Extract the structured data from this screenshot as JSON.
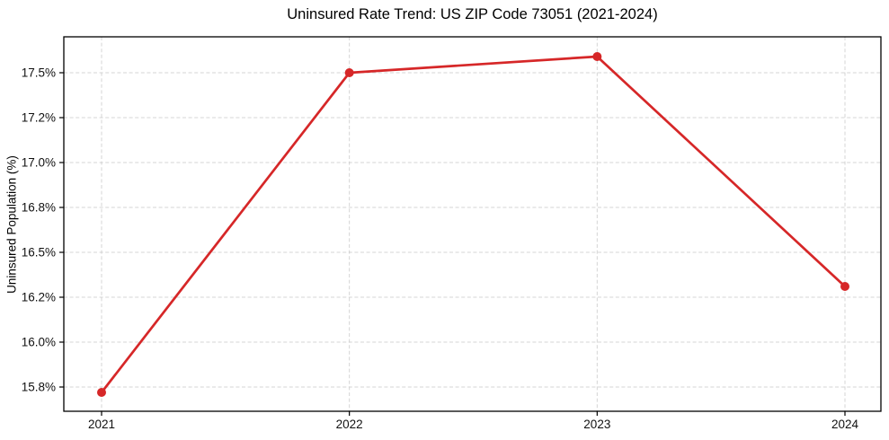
{
  "chart_data": {
    "type": "line",
    "title": "Uninsured Rate Trend: US ZIP Code 73051 (2021-2024)",
    "ylabel": "Uninsured Population (%)",
    "xlabel": "",
    "x": [
      "2021",
      "2022",
      "2023",
      "2024"
    ],
    "values": [
      15.72,
      17.5,
      17.59,
      16.31
    ],
    "ylim": [
      15.615,
      17.7
    ],
    "yticks": {
      "values": [
        15.75,
        16.0,
        16.25,
        16.5,
        16.75,
        17.0,
        17.25,
        17.5
      ],
      "labels": [
        "15.8%",
        "16.0%",
        "16.2%",
        "16.5%",
        "16.8%",
        "17.0%",
        "17.2%",
        "17.5%"
      ]
    },
    "grid": {
      "visible": true,
      "linestyle": "dashed",
      "color": "#c9c9c9"
    },
    "line_color": "#d62728",
    "marker": "circle",
    "marker_color": "#d62728",
    "legend": "none"
  }
}
